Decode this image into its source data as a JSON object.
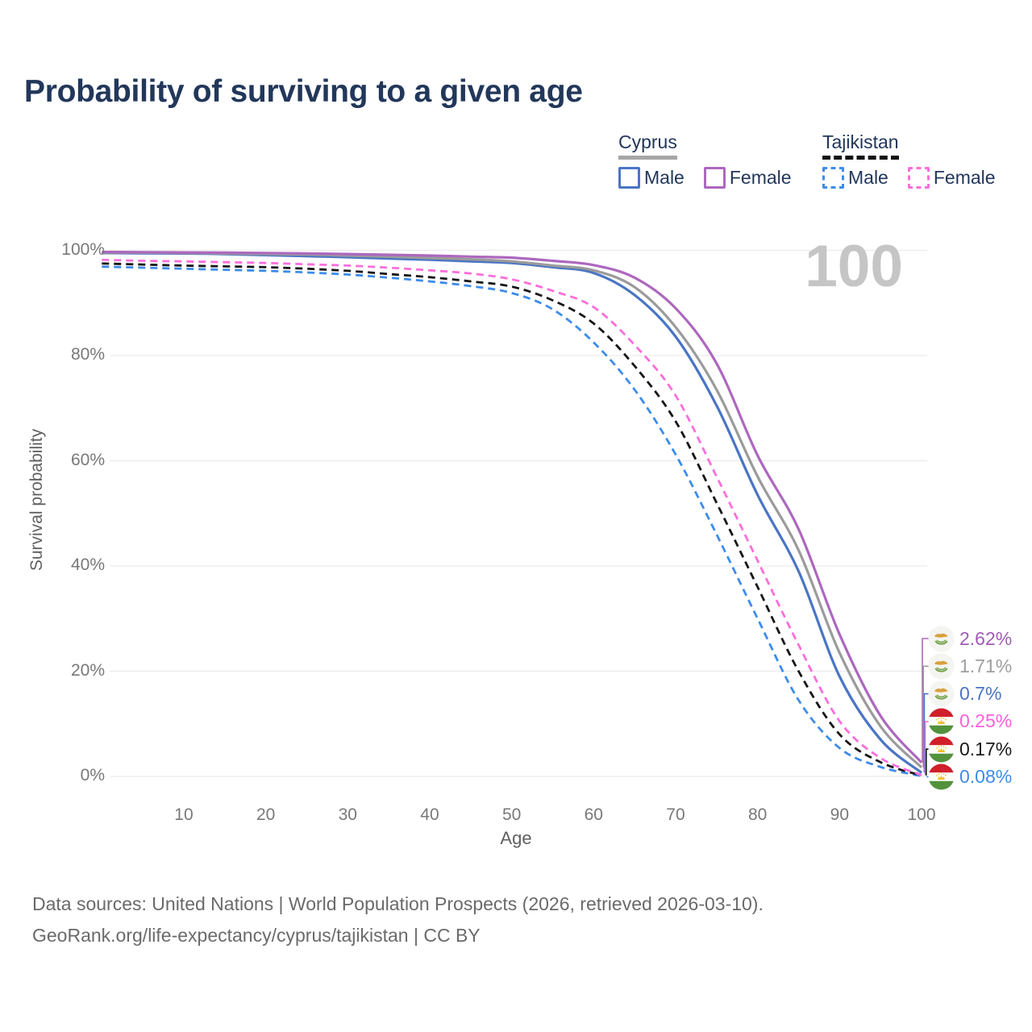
{
  "header": {
    "title": "Probability of surviving to a given age"
  },
  "watermark": {
    "text": "100"
  },
  "legend": {
    "cyprus": {
      "label": "Cyprus",
      "male_label": "Male",
      "female_label": "Female"
    },
    "tajikistan": {
      "label": "Tajikistan",
      "male_label": "Male",
      "female_label": "Female"
    }
  },
  "axes": {
    "y_title": "Survival probability",
    "x_title": "Age",
    "y_ticks": [
      "100%",
      "80%",
      "60%",
      "40%",
      "20%",
      "0%"
    ],
    "x_ticks": [
      "10",
      "20",
      "30",
      "40",
      "50",
      "60",
      "70",
      "80",
      "90",
      "100"
    ]
  },
  "footer": {
    "line1": "Data sources: United Nations | World Population Prospects (2026, retrieved 2026-03-10).",
    "line2": "GeoRank.org/life-expectancy/cyprus/tajikistan | CC BY"
  },
  "colors": {
    "title_text": "#22375a",
    "tick_text": "#787878",
    "gridline": "#ececec",
    "watermark": "#c5c5c5",
    "cyprus_underline": "#a6a6a6",
    "tajikistan_underline": "#111111"
  },
  "chart_data": {
    "type": "line",
    "title": "Probability of surviving to a given age",
    "xlabel": "Age",
    "ylabel": "Survival probability",
    "xlim": [
      0,
      100
    ],
    "ylim": [
      0,
      100
    ],
    "grid": "horizontal",
    "legend_position": "top-right",
    "annotation": "100",
    "x": [
      0,
      5,
      10,
      15,
      20,
      25,
      30,
      35,
      40,
      45,
      50,
      55,
      60,
      65,
      70,
      75,
      80,
      85,
      90,
      95,
      100
    ],
    "series": [
      {
        "name": "Cyprus Female",
        "country": "cyprus",
        "sex": "female",
        "style": "solid",
        "color": "#ad68be",
        "end_label": "2.62%",
        "end_label_color": "#a05cb4",
        "flag": "cyprus",
        "values": [
          99.7,
          99.65,
          99.6,
          99.55,
          99.5,
          99.4,
          99.3,
          99.15,
          99.0,
          98.8,
          98.6,
          98.0,
          97.2,
          94.8,
          89.0,
          78.5,
          61.0,
          47.0,
          27.0,
          11.5,
          2.62
        ]
      },
      {
        "name": "Cyprus",
        "country": "cyprus",
        "sex": "both",
        "style": "solid",
        "color": "#9b9b9b",
        "end_label": "1.71%",
        "end_label_color": "#9e9e9e",
        "flag": "cyprus",
        "values": [
          99.6,
          99.55,
          99.5,
          99.4,
          99.3,
          99.2,
          99.0,
          98.8,
          98.55,
          98.3,
          97.9,
          97.1,
          96.2,
          93.0,
          85.4,
          73.5,
          57.0,
          43.0,
          23.5,
          9.5,
          1.71
        ]
      },
      {
        "name": "Cyprus Male",
        "country": "cyprus",
        "sex": "male",
        "style": "solid",
        "color": "#4a75c4",
        "end_label": "0.7%",
        "end_label_color": "#4a75c4",
        "flag": "cyprus",
        "values": [
          99.5,
          99.45,
          99.4,
          99.3,
          99.1,
          98.9,
          98.7,
          98.45,
          98.2,
          97.9,
          97.6,
          96.8,
          95.7,
          91.5,
          83.6,
          70.5,
          53.5,
          39.0,
          19.0,
          7.0,
          0.7
        ]
      },
      {
        "name": "Tajikistan Female",
        "country": "tajikistan",
        "sex": "female",
        "style": "dashed",
        "color": "#fb6edc",
        "end_label": "0.25%",
        "end_label_color": "#fb5fdc",
        "flag": "tajikistan",
        "values": [
          98.2,
          98.0,
          97.9,
          97.75,
          97.6,
          97.35,
          97.1,
          96.7,
          96.2,
          95.6,
          94.5,
          92.3,
          89.2,
          82.0,
          72.4,
          57.0,
          41.0,
          25.0,
          10.5,
          3.5,
          0.25
        ]
      },
      {
        "name": "Tajikistan",
        "country": "tajikistan",
        "sex": "both",
        "style": "dashed",
        "color": "#161616",
        "end_label": "0.17%",
        "end_label_color": "#1a1a1a",
        "flag": "tajikistan",
        "values": [
          97.5,
          97.3,
          97.1,
          96.95,
          96.8,
          96.5,
          96.1,
          95.5,
          94.9,
          94.1,
          93.1,
          90.5,
          86.1,
          78.0,
          67.5,
          52.0,
          36.0,
          20.0,
          8.0,
          2.7,
          0.17
        ]
      },
      {
        "name": "Tajikistan Male",
        "country": "tajikistan",
        "sex": "male",
        "style": "dashed",
        "color": "#3d8cea",
        "end_label": "0.08%",
        "end_label_color": "#3d8cea",
        "flag": "tajikistan",
        "values": [
          96.9,
          96.7,
          96.5,
          96.3,
          96.1,
          95.8,
          95.4,
          94.8,
          94.1,
          93.2,
          91.9,
          88.8,
          82.5,
          73.5,
          61.2,
          46.0,
          30.0,
          14.5,
          5.4,
          1.8,
          0.08
        ]
      }
    ]
  }
}
